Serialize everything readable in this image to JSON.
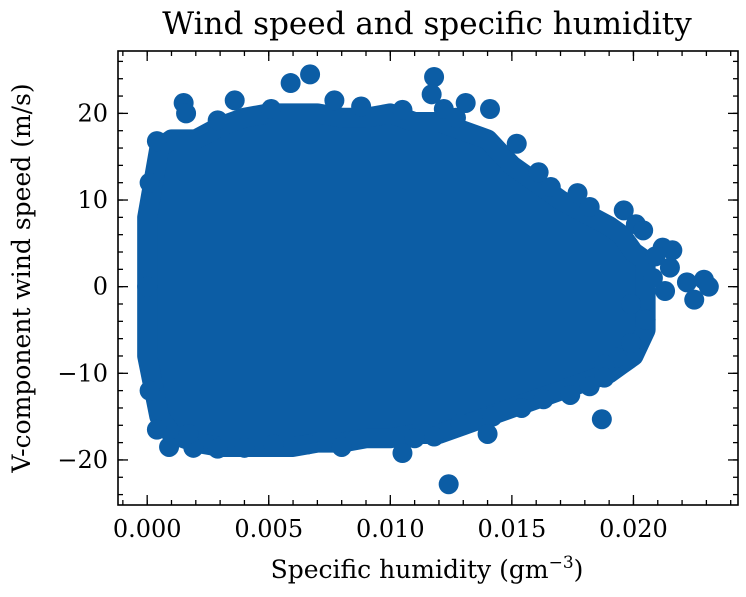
{
  "chart_data": {
    "type": "scatter",
    "title": "Wind speed and specific humidity",
    "xlabel": "Specific humidity (gm",
    "xlabel_superscript": "−3",
    "xlabel_suffix": ")",
    "ylabel": "V-component wind speed (m/s)",
    "xlim": [
      -0.0012,
      0.0243
    ],
    "ylim": [
      -25.2,
      27.2
    ],
    "xticks": [
      {
        "value": 0.0,
        "label": "0.000"
      },
      {
        "value": 0.005,
        "label": "0.005"
      },
      {
        "value": 0.01,
        "label": "0.010"
      },
      {
        "value": 0.015,
        "label": "0.015"
      },
      {
        "value": 0.02,
        "label": "0.020"
      }
    ],
    "yticks": [
      {
        "value": -20,
        "label": "−20"
      },
      {
        "value": -10,
        "label": "−10"
      },
      {
        "value": 0,
        "label": "0"
      },
      {
        "value": 10,
        "label": "10"
      },
      {
        "value": 20,
        "label": "20"
      }
    ],
    "x_minor_step": 0.001,
    "y_minor_step": 2,
    "color": "#0c5da5",
    "grid": false,
    "dense_region": {
      "x": [
        0.0,
        0.0005,
        0.001,
        0.002,
        0.003,
        0.004,
        0.005,
        0.006,
        0.007,
        0.008,
        0.009,
        0.01,
        0.011,
        0.012,
        0.013,
        0.014,
        0.015,
        0.016,
        0.017,
        0.018,
        0.019,
        0.0195,
        0.02,
        0.0205
      ],
      "y_upper": [
        8,
        16,
        17,
        17,
        18.5,
        19.5,
        20,
        20,
        20,
        19.5,
        19.5,
        20,
        19,
        19,
        18,
        17,
        14,
        12,
        10,
        8.5,
        7,
        6,
        4,
        3
      ],
      "y_lower": [
        -8,
        -15,
        -17,
        -18,
        -18.5,
        -18.5,
        -18.5,
        -18.5,
        -18,
        -18,
        -17.5,
        -17.5,
        -17,
        -17,
        -16,
        -15,
        -14,
        -13,
        -12,
        -11,
        -10,
        -9,
        -8,
        -5
      ]
    },
    "points": [
      [
        0.0067,
        24.5
      ],
      [
        0.0059,
        23.5
      ],
      [
        0.0118,
        24.2
      ],
      [
        0.0117,
        22.2
      ],
      [
        0.0036,
        21.5
      ],
      [
        0.0015,
        21.2
      ],
      [
        0.0077,
        21.5
      ],
      [
        0.0131,
        21.2
      ],
      [
        0.0141,
        20.5
      ],
      [
        0.0122,
        20.5
      ],
      [
        0.0051,
        20.5
      ],
      [
        0.0016,
        20.0
      ],
      [
        0.0088,
        20.8
      ],
      [
        0.0105,
        20.4
      ],
      [
        0.0029,
        19.2
      ],
      [
        0.0127,
        19.5
      ],
      [
        0.0152,
        16.5
      ],
      [
        0.0161,
        13.2
      ],
      [
        0.0166,
        11.5
      ],
      [
        0.0177,
        10.8
      ],
      [
        0.0182,
        9.2
      ],
      [
        0.0196,
        8.8
      ],
      [
        0.0201,
        7.2
      ],
      [
        0.0204,
        6.5
      ],
      [
        0.0212,
        4.5
      ],
      [
        0.0216,
        4.2
      ],
      [
        0.0209,
        3.5
      ],
      [
        0.0215,
        2.2
      ],
      [
        0.0222,
        0.5
      ],
      [
        0.0225,
        -1.5
      ],
      [
        0.0229,
        0.8
      ],
      [
        0.0231,
        0.0
      ],
      [
        0.0213,
        -0.5
      ],
      [
        0.0208,
        1.0
      ],
      [
        0.0199,
        -2.0
      ],
      [
        0.0205,
        -3.8
      ],
      [
        0.0199,
        -6.5
      ],
      [
        0.0193,
        -8.2
      ],
      [
        0.0188,
        -9.0
      ],
      [
        0.0188,
        -10.5
      ],
      [
        0.0182,
        -11.5
      ],
      [
        0.0174,
        -12.5
      ],
      [
        0.0163,
        -13.0
      ],
      [
        0.0154,
        -14.0
      ],
      [
        0.0142,
        -15.0
      ],
      [
        0.0187,
        -15.3
      ],
      [
        0.0129,
        -15.8
      ],
      [
        0.014,
        -17.0
      ],
      [
        0.0118,
        -17.3
      ],
      [
        0.011,
        -17.5
      ],
      [
        0.0105,
        -19.2
      ],
      [
        0.008,
        -18.5
      ],
      [
        0.0052,
        -18.2
      ],
      [
        0.004,
        -18.6
      ],
      [
        0.0029,
        -18.7
      ],
      [
        0.0019,
        -18.6
      ],
      [
        0.0009,
        -18.5
      ],
      [
        0.0017,
        -17.0
      ],
      [
        0.0124,
        -22.8
      ],
      [
        0.0066,
        -18.2
      ],
      [
        0.0004,
        16.8
      ],
      [
        0.0004,
        -16.5
      ],
      [
        0.0001,
        12.0
      ],
      [
        0.0001,
        -12.0
      ],
      [
        0.0,
        0.0
      ]
    ]
  }
}
